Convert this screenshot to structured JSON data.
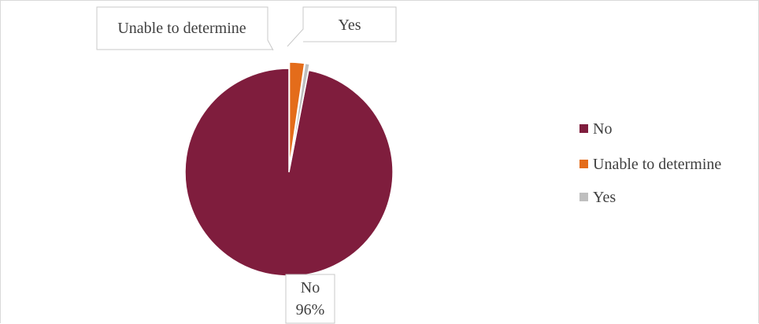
{
  "chart_data": {
    "type": "pie",
    "title": "",
    "slices": [
      {
        "label": "No",
        "value": 96,
        "color": "#7f1d3d"
      },
      {
        "label": "Unable to determine",
        "value": 2.3,
        "color": "#e46c1a"
      },
      {
        "label": "Yes",
        "value": 0.7,
        "color": "#bfbfbf"
      }
    ],
    "data_labels": {
      "no": [
        "No",
        "96%"
      ],
      "unable": "Unable to determine",
      "yes": "Yes"
    },
    "legend": {
      "position": "right",
      "items": [
        "No",
        "Unable to determine",
        "Yes"
      ]
    }
  }
}
